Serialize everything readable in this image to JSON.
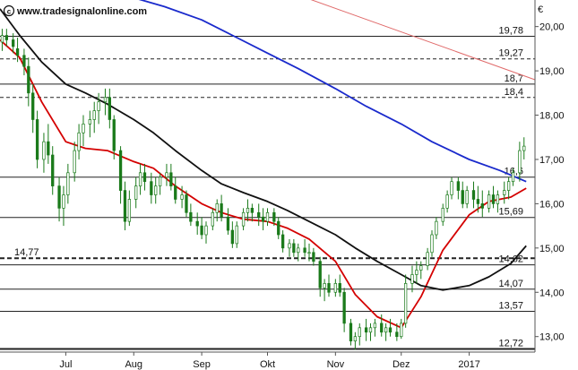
{
  "watermark": "www.tradesignalonline.com",
  "chart_data": {
    "type": "candlestick",
    "currency_label": "€",
    "ylim": [
      12.65,
      20.6
    ],
    "y_ticks": [
      "20,00",
      "19,00",
      "18,00",
      "17,00",
      "16,00",
      "15,00",
      "14,00",
      "13,00"
    ],
    "y_tick_values": [
      20,
      19,
      18,
      17,
      16,
      15,
      14,
      13
    ],
    "x_range": [
      "2016-06-01",
      "2017-01-31"
    ],
    "x_ticks": [
      {
        "label": "Jul",
        "date": "2016-07-01"
      },
      {
        "label": "Aug",
        "date": "2016-08-01"
      },
      {
        "label": "Sep",
        "date": "2016-09-01"
      },
      {
        "label": "Okt",
        "date": "2016-10-01"
      },
      {
        "label": "Nov",
        "date": "2016-11-01"
      },
      {
        "label": "Dez",
        "date": "2016-12-01"
      },
      {
        "label": "2017",
        "date": "2017-01-01"
      }
    ],
    "levels": [
      {
        "label": "19,78",
        "value": 19.78,
        "style": "solid"
      },
      {
        "label": "19,27",
        "value": 19.27,
        "style": "dashed"
      },
      {
        "label": "18,7",
        "value": 18.7,
        "style": "solid"
      },
      {
        "label": "18,4",
        "value": 18.4,
        "style": "dashed"
      },
      {
        "label": "16,6",
        "value": 16.6,
        "style": "solid"
      },
      {
        "label": "15,69",
        "value": 15.69,
        "style": "solid"
      },
      {
        "label": "14,77",
        "value": 14.77,
        "style": "dashed-bold"
      },
      {
        "label": "14,62",
        "value": 14.62,
        "style": "solid"
      },
      {
        "label": "14,07",
        "value": 14.07,
        "style": "solid"
      },
      {
        "label": "13,57",
        "value": 13.57,
        "style": "solid"
      },
      {
        "label": "12,72",
        "value": 12.72,
        "style": "solid-bold"
      }
    ],
    "series": [
      {
        "kind": "ohlc",
        "points": [
          [
            "2016-06-02",
            19.65,
            19.95,
            19.45,
            19.8
          ],
          [
            "2016-06-04",
            19.8,
            19.95,
            19.55,
            19.7
          ],
          [
            "2016-06-07",
            19.7,
            19.85,
            19.4,
            19.55
          ],
          [
            "2016-06-09",
            19.5,
            19.75,
            19.2,
            19.35
          ],
          [
            "2016-06-12",
            19.35,
            19.5,
            18.9,
            19.1
          ],
          [
            "2016-06-14",
            19.1,
            19.3,
            18.2,
            18.5
          ],
          [
            "2016-06-16",
            18.5,
            18.7,
            17.6,
            17.9
          ],
          [
            "2016-06-18",
            17.9,
            18.1,
            16.8,
            17.0
          ],
          [
            "2016-06-21",
            17.0,
            17.6,
            16.7,
            17.4
          ],
          [
            "2016-06-23",
            17.4,
            17.8,
            16.9,
            17.1
          ],
          [
            "2016-06-25",
            17.1,
            17.3,
            16.2,
            16.4
          ],
          [
            "2016-06-28",
            16.4,
            16.6,
            15.6,
            15.9
          ],
          [
            "2016-06-30",
            15.9,
            16.4,
            15.5,
            16.2
          ],
          [
            "2016-07-02",
            16.2,
            16.9,
            16.0,
            16.7
          ],
          [
            "2016-07-05",
            16.7,
            17.4,
            16.5,
            17.2
          ],
          [
            "2016-07-07",
            17.2,
            17.8,
            17.0,
            17.6
          ],
          [
            "2016-07-09",
            17.6,
            18.0,
            17.3,
            17.8
          ],
          [
            "2016-07-12",
            17.8,
            18.1,
            17.5,
            17.9
          ],
          [
            "2016-07-14",
            17.9,
            18.3,
            17.6,
            18.1
          ],
          [
            "2016-07-16",
            18.1,
            18.5,
            17.8,
            18.3
          ],
          [
            "2016-07-19",
            18.3,
            18.6,
            18.0,
            18.4
          ],
          [
            "2016-07-21",
            18.4,
            18.6,
            17.7,
            17.9
          ],
          [
            "2016-07-23",
            17.9,
            18.0,
            17.0,
            17.2
          ],
          [
            "2016-07-26",
            17.2,
            17.3,
            16.0,
            16.3
          ],
          [
            "2016-07-28",
            16.3,
            16.5,
            15.4,
            15.6
          ],
          [
            "2016-07-30",
            15.6,
            16.3,
            15.5,
            16.1
          ],
          [
            "2016-08-02",
            16.1,
            16.6,
            15.9,
            16.4
          ],
          [
            "2016-08-04",
            16.4,
            16.9,
            16.2,
            16.7
          ],
          [
            "2016-08-06",
            16.7,
            16.9,
            16.3,
            16.5
          ],
          [
            "2016-08-09",
            16.5,
            16.7,
            16.0,
            16.2
          ],
          [
            "2016-08-11",
            16.2,
            16.6,
            16.0,
            16.4
          ],
          [
            "2016-08-13",
            16.4,
            16.7,
            16.2,
            16.6
          ],
          [
            "2016-08-16",
            16.6,
            16.9,
            16.4,
            16.7
          ],
          [
            "2016-08-18",
            16.7,
            16.9,
            16.3,
            16.4
          ],
          [
            "2016-08-20",
            16.4,
            16.6,
            16.0,
            16.1
          ],
          [
            "2016-08-23",
            16.1,
            16.4,
            15.9,
            16.2
          ],
          [
            "2016-08-25",
            16.2,
            16.3,
            15.7,
            15.8
          ],
          [
            "2016-08-27",
            15.8,
            16.0,
            15.5,
            15.6
          ],
          [
            "2016-08-30",
            15.6,
            15.8,
            15.3,
            15.5
          ],
          [
            "2016-09-01",
            15.5,
            15.7,
            15.2,
            15.3
          ],
          [
            "2016-09-03",
            15.3,
            15.6,
            15.1,
            15.5
          ],
          [
            "2016-09-06",
            15.5,
            15.9,
            15.4,
            15.8
          ],
          [
            "2016-09-08",
            15.8,
            16.1,
            15.6,
            16.0
          ],
          [
            "2016-09-10",
            16.0,
            16.2,
            15.6,
            15.7
          ],
          [
            "2016-09-13",
            15.7,
            15.9,
            15.3,
            15.4
          ],
          [
            "2016-09-15",
            15.4,
            15.6,
            15.0,
            15.1
          ],
          [
            "2016-09-17",
            15.1,
            15.6,
            15.0,
            15.5
          ],
          [
            "2016-09-20",
            15.5,
            15.9,
            15.4,
            15.8
          ],
          [
            "2016-09-22",
            15.8,
            16.1,
            15.6,
            15.9
          ],
          [
            "2016-09-24",
            15.9,
            16.0,
            15.6,
            15.8
          ],
          [
            "2016-09-27",
            15.8,
            16.0,
            15.5,
            15.7
          ],
          [
            "2016-09-29",
            15.7,
            15.9,
            15.4,
            15.6
          ],
          [
            "2016-10-01",
            15.6,
            15.9,
            15.5,
            15.8
          ],
          [
            "2016-10-04",
            15.8,
            15.9,
            15.5,
            15.6
          ],
          [
            "2016-10-06",
            15.6,
            15.7,
            15.2,
            15.3
          ],
          [
            "2016-10-08",
            15.3,
            15.4,
            14.9,
            15.0
          ],
          [
            "2016-10-11",
            15.0,
            15.2,
            14.8,
            15.1
          ],
          [
            "2016-10-13",
            15.1,
            15.2,
            14.8,
            14.9
          ],
          [
            "2016-10-15",
            14.9,
            15.1,
            14.7,
            15.0
          ],
          [
            "2016-10-18",
            15.0,
            15.2,
            14.8,
            14.9
          ],
          [
            "2016-10-20",
            14.9,
            15.1,
            14.7,
            14.9
          ],
          [
            "2016-10-22",
            14.9,
            15.0,
            14.6,
            14.7
          ],
          [
            "2016-10-25",
            14.7,
            14.8,
            13.9,
            14.1
          ],
          [
            "2016-10-27",
            14.1,
            14.3,
            13.8,
            14.2
          ],
          [
            "2016-10-29",
            14.2,
            14.4,
            13.9,
            14.0
          ],
          [
            "2016-11-01",
            14.0,
            14.3,
            13.9,
            14.2
          ],
          [
            "2016-11-03",
            14.2,
            14.4,
            13.9,
            14.0
          ],
          [
            "2016-11-05",
            14.0,
            14.1,
            13.1,
            13.3
          ],
          [
            "2016-11-08",
            13.3,
            13.4,
            12.8,
            12.9
          ],
          [
            "2016-11-10",
            12.9,
            13.1,
            12.7,
            13.0
          ],
          [
            "2016-11-12",
            13.0,
            13.3,
            12.8,
            13.2
          ],
          [
            "2016-11-15",
            13.2,
            13.4,
            12.9,
            13.1
          ],
          [
            "2016-11-17",
            13.1,
            13.3,
            12.9,
            13.2
          ],
          [
            "2016-11-19",
            13.2,
            13.4,
            13.0,
            13.3
          ],
          [
            "2016-11-22",
            13.3,
            13.5,
            13.0,
            13.1
          ],
          [
            "2016-11-24",
            13.1,
            13.3,
            12.9,
            13.2
          ],
          [
            "2016-11-26",
            13.2,
            13.4,
            13.0,
            13.1
          ],
          [
            "2016-11-29",
            13.1,
            13.3,
            12.9,
            13.0
          ],
          [
            "2016-12-01",
            13.0,
            13.4,
            12.95,
            13.3
          ],
          [
            "2016-12-03",
            13.3,
            14.4,
            13.2,
            14.2
          ],
          [
            "2016-12-06",
            14.2,
            14.6,
            14.0,
            14.4
          ],
          [
            "2016-12-08",
            14.4,
            14.7,
            14.2,
            14.5
          ],
          [
            "2016-12-10",
            14.5,
            14.7,
            14.3,
            14.6
          ],
          [
            "2016-12-13",
            14.6,
            15.0,
            14.5,
            14.9
          ],
          [
            "2016-12-15",
            14.9,
            15.4,
            14.8,
            15.3
          ],
          [
            "2016-12-17",
            15.3,
            15.7,
            15.2,
            15.6
          ],
          [
            "2016-12-20",
            15.6,
            16.0,
            15.5,
            15.9
          ],
          [
            "2016-12-22",
            15.9,
            16.3,
            15.8,
            16.2
          ],
          [
            "2016-12-24",
            16.2,
            16.6,
            16.1,
            16.5
          ],
          [
            "2016-12-27",
            16.5,
            16.6,
            16.1,
            16.3
          ],
          [
            "2016-12-29",
            16.3,
            16.5,
            15.9,
            16.0
          ],
          [
            "2016-12-31",
            16.0,
            16.4,
            15.9,
            16.3
          ],
          [
            "2017-01-03",
            16.3,
            16.5,
            15.9,
            16.1
          ],
          [
            "2017-01-05",
            16.1,
            16.4,
            15.8,
            16.0
          ],
          [
            "2017-01-07",
            16.0,
            16.3,
            15.7,
            15.9
          ],
          [
            "2017-01-10",
            15.9,
            16.3,
            15.8,
            16.2
          ],
          [
            "2017-01-12",
            16.2,
            16.4,
            15.9,
            16.0
          ],
          [
            "2017-01-14",
            16.0,
            16.3,
            15.8,
            16.2
          ],
          [
            "2017-01-17",
            16.2,
            16.5,
            16.0,
            16.3
          ],
          [
            "2017-01-19",
            16.3,
            16.6,
            16.1,
            16.5
          ],
          [
            "2017-01-21",
            16.5,
            16.8,
            16.4,
            16.7
          ],
          [
            "2017-01-24",
            16.7,
            17.4,
            16.5,
            17.2
          ],
          [
            "2017-01-26",
            17.2,
            17.5,
            17.0,
            17.3
          ]
        ]
      },
      {
        "kind": "line",
        "color": "#d40000",
        "points": [
          [
            "2016-06-01",
            19.7
          ],
          [
            "2016-06-10",
            19.3
          ],
          [
            "2016-06-20",
            18.3
          ],
          [
            "2016-07-01",
            17.4
          ],
          [
            "2016-07-10",
            17.25
          ],
          [
            "2016-07-20",
            17.2
          ],
          [
            "2016-08-01",
            16.95
          ],
          [
            "2016-08-10",
            16.8
          ],
          [
            "2016-08-20",
            16.4
          ],
          [
            "2016-09-01",
            16.0
          ],
          [
            "2016-09-10",
            15.8
          ],
          [
            "2016-09-20",
            15.65
          ],
          [
            "2016-10-01",
            15.6
          ],
          [
            "2016-10-10",
            15.45
          ],
          [
            "2016-10-20",
            15.2
          ],
          [
            "2016-11-01",
            14.7
          ],
          [
            "2016-11-10",
            13.95
          ],
          [
            "2016-11-20",
            13.45
          ],
          [
            "2016-12-01",
            13.2
          ],
          [
            "2016-12-10",
            13.9
          ],
          [
            "2016-12-20",
            14.95
          ],
          [
            "2017-01-01",
            15.75
          ],
          [
            "2017-01-10",
            16.05
          ],
          [
            "2017-01-20",
            16.15
          ],
          [
            "2017-01-27",
            16.35
          ]
        ]
      },
      {
        "kind": "line",
        "color": "#111111",
        "points": [
          [
            "2016-06-01",
            20.4
          ],
          [
            "2016-06-10",
            19.8
          ],
          [
            "2016-06-20",
            19.2
          ],
          [
            "2016-07-01",
            18.7
          ],
          [
            "2016-07-10",
            18.5
          ],
          [
            "2016-07-20",
            18.25
          ],
          [
            "2016-08-01",
            17.9
          ],
          [
            "2016-08-10",
            17.6
          ],
          [
            "2016-08-20",
            17.2
          ],
          [
            "2016-09-01",
            16.75
          ],
          [
            "2016-09-10",
            16.45
          ],
          [
            "2016-09-20",
            16.25
          ],
          [
            "2016-10-01",
            16.05
          ],
          [
            "2016-10-10",
            15.85
          ],
          [
            "2016-10-20",
            15.6
          ],
          [
            "2016-11-01",
            15.3
          ],
          [
            "2016-11-10",
            15.0
          ],
          [
            "2016-11-20",
            14.7
          ],
          [
            "2016-12-01",
            14.4
          ],
          [
            "2016-12-10",
            14.15
          ],
          [
            "2016-12-20",
            14.05
          ],
          [
            "2017-01-01",
            14.15
          ],
          [
            "2017-01-10",
            14.35
          ],
          [
            "2017-01-20",
            14.65
          ],
          [
            "2017-01-27",
            15.05
          ]
        ]
      },
      {
        "kind": "line",
        "color": "#1a2acc",
        "points": [
          [
            "2016-07-20",
            20.8
          ],
          [
            "2016-08-01",
            20.65
          ],
          [
            "2016-08-15",
            20.45
          ],
          [
            "2016-09-01",
            20.15
          ],
          [
            "2016-09-15",
            19.8
          ],
          [
            "2016-10-01",
            19.4
          ],
          [
            "2016-10-15",
            19.05
          ],
          [
            "2016-11-01",
            18.6
          ],
          [
            "2016-11-15",
            18.2
          ],
          [
            "2016-12-01",
            17.8
          ],
          [
            "2016-12-15",
            17.4
          ],
          [
            "2017-01-01",
            17.0
          ],
          [
            "2017-01-15",
            16.75
          ],
          [
            "2017-01-27",
            16.5
          ]
        ]
      },
      {
        "kind": "line",
        "color": "#e06a6a",
        "points": [
          [
            "2016-10-10",
            20.8
          ],
          [
            "2017-01-31",
            18.8
          ]
        ]
      }
    ]
  }
}
